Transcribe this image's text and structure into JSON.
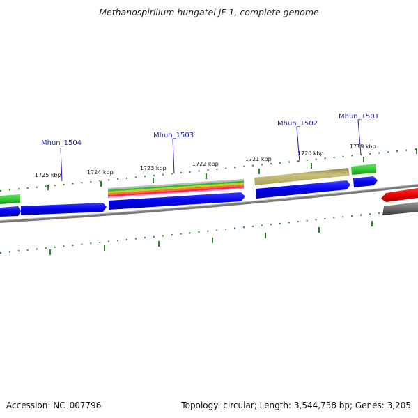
{
  "title": "Methanospirillum hungatei JF-1, complete genome",
  "footer": {
    "accession": "Accession: NC_007796",
    "summary": "Topology: circular; Length: 3,544,738 bp; Genes: 3,205"
  },
  "ruler_labels": [
    {
      "name": "tick-1725",
      "text": "1725 kbp"
    },
    {
      "name": "tick-1724",
      "text": "1724 kbp"
    },
    {
      "name": "tick-1723",
      "text": "1723 kbp"
    },
    {
      "name": "tick-1722",
      "text": "1722 kbp"
    },
    {
      "name": "tick-1721",
      "text": "1721 kbp"
    },
    {
      "name": "tick-1720",
      "text": "1720 kbp"
    },
    {
      "name": "tick-1719",
      "text": "1719 kbp"
    }
  ],
  "gene_labels": [
    {
      "name": "gene-label-mhun-1504",
      "text": "Mhun_1504"
    },
    {
      "name": "gene-label-mhun-1503",
      "text": "Mhun_1503"
    },
    {
      "name": "gene-label-mhun-1502",
      "text": "Mhun_1502"
    },
    {
      "name": "gene-label-mhun-1501",
      "text": "Mhun_1501"
    }
  ],
  "colors": {
    "cds": "#0000ee",
    "gene_green": "#33cc33",
    "olive": "#b5ad62",
    "red": "#ee0000",
    "backbone": "#7a7a7a",
    "tick": "#228822",
    "label_blue": "#1c1caa"
  }
}
